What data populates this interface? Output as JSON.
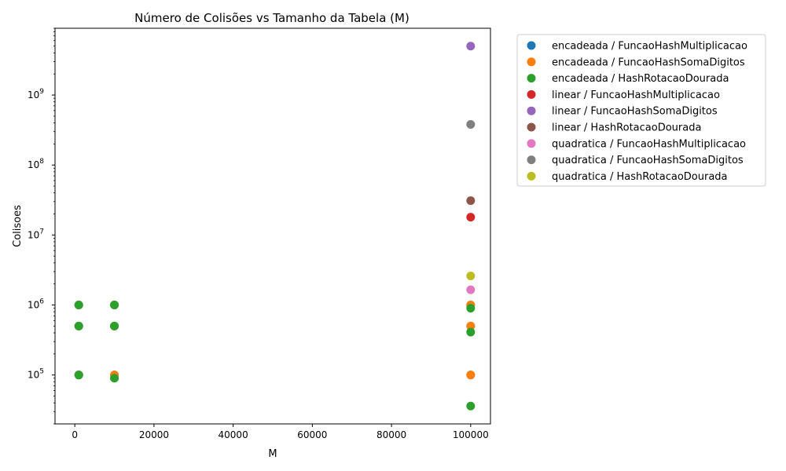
{
  "chart_data": {
    "type": "scatter",
    "title": "Número de Colisões vs Tamanho da Tabela (M)",
    "xlabel": "M",
    "ylabel": "Colisoes",
    "xlim": [
      -5000,
      105000
    ],
    "ylim": [
      20000,
      9000000000
    ],
    "yscale": "log",
    "grid": false,
    "legend_position": "outside-right",
    "x_ticks": [
      {
        "value": 0,
        "label": "0"
      },
      {
        "value": 20000,
        "label": "20000"
      },
      {
        "value": 40000,
        "label": "40000"
      },
      {
        "value": 60000,
        "label": "60000"
      },
      {
        "value": 80000,
        "label": "80000"
      },
      {
        "value": 100000,
        "label": "100000"
      }
    ],
    "y_ticks": [
      {
        "value": 100000,
        "base": "10",
        "exp": "5"
      },
      {
        "value": 1000000,
        "base": "10",
        "exp": "6"
      },
      {
        "value": 10000000,
        "base": "10",
        "exp": "7"
      },
      {
        "value": 100000000,
        "base": "10",
        "exp": "8"
      },
      {
        "value": 1000000000,
        "base": "10",
        "exp": "9"
      }
    ],
    "series": [
      {
        "name": "encadeada / FuncaoHashMultiplicacao",
        "color": "#1f77b4",
        "points": [
          [
            1000,
            100000
          ],
          [
            1000,
            500000
          ],
          [
            1000,
            1000000
          ],
          [
            10000,
            100000
          ],
          [
            10000,
            500000
          ],
          [
            10000,
            1000000
          ],
          [
            100000,
            100000
          ],
          [
            100000,
            500000
          ],
          [
            100000,
            1000000
          ]
        ]
      },
      {
        "name": "encadeada / FuncaoHashSomaDigitos",
        "color": "#ff7f0e",
        "points": [
          [
            1000,
            100000
          ],
          [
            1000,
            500000
          ],
          [
            1000,
            1000000
          ],
          [
            10000,
            100000
          ],
          [
            10000,
            500000
          ],
          [
            10000,
            1000000
          ],
          [
            100000,
            100000
          ],
          [
            100000,
            500000
          ],
          [
            100000,
            1000000
          ]
        ]
      },
      {
        "name": "encadeada / HashRotacaoDourada",
        "color": "#2ca02c",
        "points": [
          [
            1000,
            100000
          ],
          [
            1000,
            500000
          ],
          [
            1000,
            1000000
          ],
          [
            10000,
            90000
          ],
          [
            10000,
            500000
          ],
          [
            10000,
            1000000
          ],
          [
            100000,
            36000
          ],
          [
            100000,
            410000
          ],
          [
            100000,
            900000
          ]
        ]
      },
      {
        "name": "linear / FuncaoHashMultiplicacao",
        "color": "#d62728",
        "points": [
          [
            100000,
            18000000
          ]
        ]
      },
      {
        "name": "linear / FuncaoHashSomaDigitos",
        "color": "#9467bd",
        "points": [
          [
            100000,
            5000000000
          ]
        ]
      },
      {
        "name": "linear / HashRotacaoDourada",
        "color": "#8c564b",
        "points": [
          [
            100000,
            31000000
          ]
        ]
      },
      {
        "name": "quadratica / FuncaoHashMultiplicacao",
        "color": "#e377c2",
        "points": [
          [
            100000,
            1650000
          ]
        ]
      },
      {
        "name": "quadratica / FuncaoHashSomaDigitos",
        "color": "#7f7f7f",
        "points": [
          [
            100000,
            380000000
          ]
        ]
      },
      {
        "name": "quadratica / HashRotacaoDourada",
        "color": "#bcbd22",
        "points": [
          [
            100000,
            2600000
          ]
        ]
      }
    ]
  }
}
